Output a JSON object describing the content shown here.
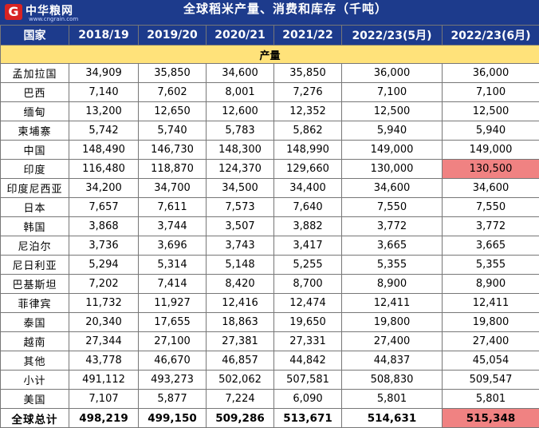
{
  "header": {
    "logo_text": "中华粮网",
    "logo_url": "www.cngrain.com",
    "logo_mark": "G",
    "title": "全球稻米产量、消费和库存（千吨）"
  },
  "table": {
    "columns": [
      "国家",
      "2018/19",
      "2019/20",
      "2020/21",
      "2021/22",
      "2022/23(5月)",
      "2022/23(6月)"
    ],
    "section_label": "产量",
    "rows": [
      {
        "name": "孟加拉国",
        "values": [
          "34,909",
          "35,850",
          "34,600",
          "35,850",
          "36,000",
          "36,000"
        ]
      },
      {
        "name": "巴西",
        "values": [
          "7,140",
          "7,602",
          "8,001",
          "7,276",
          "7,100",
          "7,100"
        ]
      },
      {
        "name": "缅甸",
        "values": [
          "13,200",
          "12,650",
          "12,600",
          "12,352",
          "12,500",
          "12,500"
        ]
      },
      {
        "name": "柬埔寨",
        "values": [
          "5,742",
          "5,740",
          "5,783",
          "5,862",
          "5,940",
          "5,940"
        ]
      },
      {
        "name": "中国",
        "values": [
          "148,490",
          "146,730",
          "148,300",
          "148,990",
          "149,000",
          "149,000"
        ]
      },
      {
        "name": "印度",
        "values": [
          "116,480",
          "118,870",
          "124,370",
          "129,660",
          "130,000",
          "130,500"
        ]
      },
      {
        "name": "印度尼西亚",
        "values": [
          "34,200",
          "34,700",
          "34,500",
          "34,400",
          "34,600",
          "34,600"
        ]
      },
      {
        "name": "日本",
        "values": [
          "7,657",
          "7,611",
          "7,573",
          "7,640",
          "7,550",
          "7,550"
        ]
      },
      {
        "name": "韩国",
        "values": [
          "3,868",
          "3,744",
          "3,507",
          "3,882",
          "3,772",
          "3,772"
        ]
      },
      {
        "name": "尼泊尔",
        "values": [
          "3,736",
          "3,696",
          "3,743",
          "3,417",
          "3,665",
          "3,665"
        ]
      },
      {
        "name": "尼日利亚",
        "values": [
          "5,294",
          "5,314",
          "5,148",
          "5,255",
          "5,355",
          "5,355"
        ]
      },
      {
        "name": "巴基斯坦",
        "values": [
          "7,202",
          "7,414",
          "8,420",
          "8,700",
          "8,900",
          "8,900"
        ]
      },
      {
        "name": "菲律宾",
        "values": [
          "11,732",
          "11,927",
          "12,416",
          "12,474",
          "12,411",
          "12,411"
        ]
      },
      {
        "name": "泰国",
        "values": [
          "20,340",
          "17,655",
          "18,863",
          "19,650",
          "19,800",
          "19,800"
        ]
      },
      {
        "name": "越南",
        "values": [
          "27,344",
          "27,100",
          "27,381",
          "27,331",
          "27,400",
          "27,400"
        ]
      },
      {
        "name": "其他",
        "values": [
          "43,778",
          "46,670",
          "46,857",
          "44,842",
          "44,837",
          "45,054"
        ]
      },
      {
        "name": "小计",
        "values": [
          "491,112",
          "493,273",
          "502,062",
          "507,581",
          "508,830",
          "509,547"
        ]
      },
      {
        "name": "美国",
        "values": [
          "7,107",
          "5,877",
          "7,224",
          "6,090",
          "5,801",
          "5,801"
        ]
      }
    ],
    "total": {
      "name": "全球总计",
      "values": [
        "498,219",
        "499,150",
        "509,286",
        "513,671",
        "514,631",
        "515,348"
      ]
    },
    "highlight_color": "#f08282",
    "header_color": "#1d3b8c",
    "section_color": "#ffe27a"
  }
}
